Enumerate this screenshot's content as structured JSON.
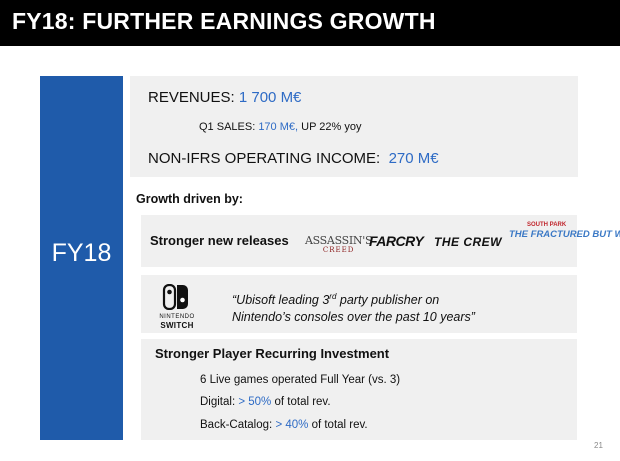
{
  "header": {
    "title": "FY18: FURTHER EARNINGS GROWTH"
  },
  "side_panel": {
    "label": "FY18"
  },
  "results": {
    "revenues_label": "REVENUES: ",
    "revenues_value": "1 700 M€",
    "q1_label": "Q1 SALES: ",
    "q1_value": "170 M€,",
    "q1_suffix": " UP 22% yoy",
    "operating_income_label": "NON-IFRS OPERATING INCOME:",
    "operating_income_value": "270 M€"
  },
  "growth": {
    "heading": "Growth driven by:",
    "releases_label": "Stronger new releases",
    "game_logos": {
      "assassins_creed": "ASSASSIN'S",
      "assassins_creed_sub": "CREED",
      "far_cry": "FARCRY",
      "the_crew": "THE CREW",
      "south_park_top": "SOUTH PARK",
      "south_park_main": "THE FRACTURED BUT WHOLE"
    }
  },
  "nintendo": {
    "logo_text_line1": "NINTENDO",
    "logo_text_line2": "SWITCH",
    "quote_part1": "“Ubisoft leading 3",
    "quote_sup": "rd",
    "quote_part2": " party publisher on",
    "quote_line2": "Nintendo’s consoles over the past 10 years”"
  },
  "recurring": {
    "heading": "Stronger Player Recurring Investment",
    "live_games": "6 Live games operated Full Year (vs. 3)",
    "digital_label": "Digital: ",
    "digital_value": "> 50%",
    "digital_suffix": " of total rev.",
    "backcatalog_label": "Back-Catalog: ",
    "backcatalog_value": "> 40%",
    "backcatalog_suffix": " of total rev."
  },
  "footer": {
    "page_number": "21"
  },
  "colors": {
    "panel_blue": "#1f5baa",
    "value_blue": "#2e6bc5",
    "box_gray": "#f0f0f0"
  }
}
